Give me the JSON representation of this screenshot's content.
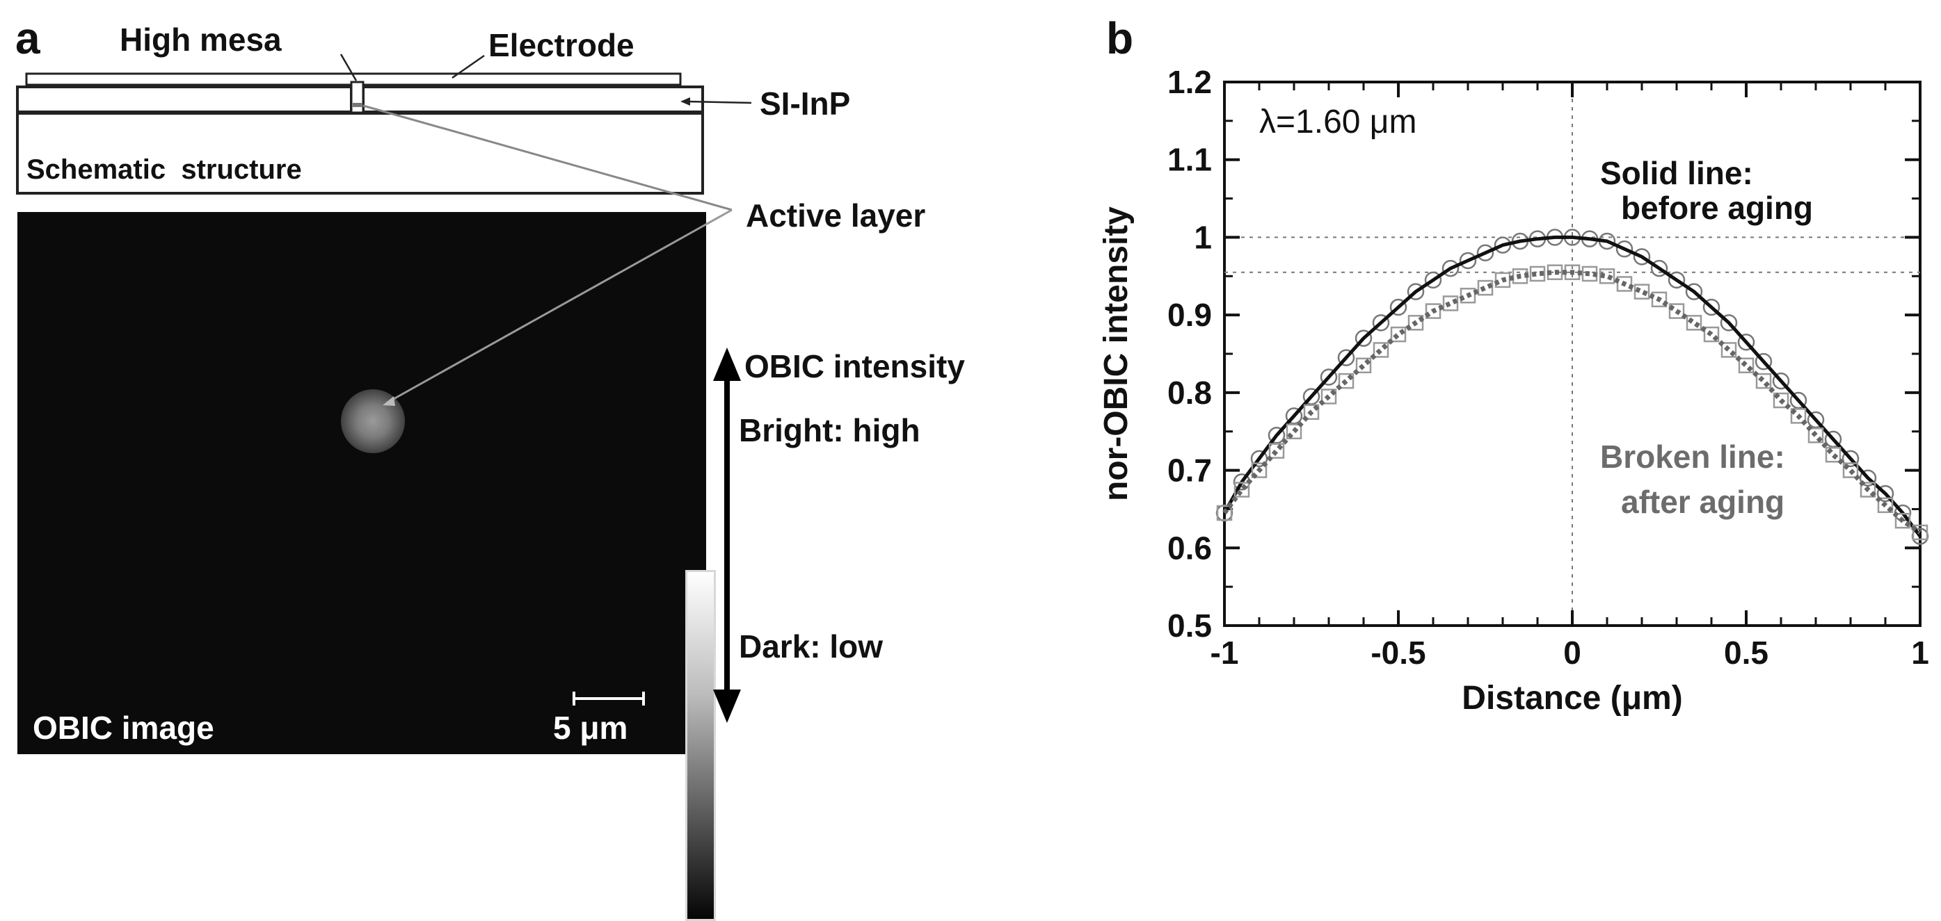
{
  "panel_a": {
    "letter": "a",
    "labels": {
      "high_mesa": "High mesa",
      "electrode": "Electrode",
      "si_inp": "SI-InP",
      "schematic": "Schematic  structure",
      "active_layer": "Active layer",
      "obic_intensity": "OBIC intensity",
      "bright": "Bright: high",
      "dark": "Dark: low",
      "obic_image": "OBIC image",
      "scale": "5 μm"
    }
  },
  "panel_b": {
    "letter": "b",
    "annotation_lambda": "λ=1.60 μm",
    "solid_label_1": "Solid line:",
    "solid_label_2": "before aging",
    "broken_label_1": "Broken line:",
    "broken_label_2": "after aging"
  },
  "chart_data": {
    "type": "scatter",
    "xlabel": "Distance (μm)",
    "ylabel": "nor-OBIC intensity",
    "xlim": [
      -1,
      1
    ],
    "ylim": [
      0.5,
      1.2
    ],
    "xticks": [
      -1,
      -0.5,
      0,
      0.5,
      1
    ],
    "xtick_labels": [
      "-1",
      "-0.5",
      "0",
      "0.5",
      "1"
    ],
    "yticks": [
      0.5,
      0.6,
      0.7,
      0.8,
      0.9,
      1.0,
      1.1,
      1.2
    ],
    "ytick_labels": [
      "0.5",
      "0.6",
      "0.7",
      "0.8",
      "0.9",
      "1",
      "1.1",
      "1.2"
    ],
    "reference_lines": {
      "h": [
        1.0,
        0.955
      ],
      "v": [
        0
      ]
    },
    "series": [
      {
        "name": "Solid line: before aging",
        "marker": "circle",
        "line": "solid",
        "color": "#111111",
        "x": [
          -1,
          -0.95,
          -0.9,
          -0.85,
          -0.8,
          -0.75,
          -0.7,
          -0.65,
          -0.6,
          -0.55,
          -0.5,
          -0.45,
          -0.4,
          -0.35,
          -0.3,
          -0.25,
          -0.2,
          -0.15,
          -0.1,
          -0.05,
          0,
          0.05,
          0.1,
          0.15,
          0.2,
          0.25,
          0.3,
          0.35,
          0.4,
          0.45,
          0.5,
          0.55,
          0.6,
          0.65,
          0.7,
          0.75,
          0.8,
          0.85,
          0.9,
          0.95,
          1
        ],
        "y": [
          0.645,
          0.685,
          0.715,
          0.745,
          0.77,
          0.795,
          0.82,
          0.845,
          0.87,
          0.89,
          0.91,
          0.93,
          0.945,
          0.96,
          0.97,
          0.98,
          0.99,
          0.995,
          0.998,
          1.0,
          1.0,
          0.998,
          0.995,
          0.985,
          0.975,
          0.96,
          0.945,
          0.93,
          0.91,
          0.89,
          0.865,
          0.84,
          0.815,
          0.79,
          0.765,
          0.74,
          0.715,
          0.69,
          0.67,
          0.645,
          0.615
        ]
      },
      {
        "name": "Broken line: after aging",
        "marker": "square",
        "line": "dashed",
        "color": "#666666",
        "x": [
          -1,
          -0.95,
          -0.9,
          -0.85,
          -0.8,
          -0.75,
          -0.7,
          -0.65,
          -0.6,
          -0.55,
          -0.5,
          -0.45,
          -0.4,
          -0.35,
          -0.3,
          -0.25,
          -0.2,
          -0.15,
          -0.1,
          -0.05,
          0,
          0.05,
          0.1,
          0.15,
          0.2,
          0.25,
          0.3,
          0.35,
          0.4,
          0.45,
          0.5,
          0.55,
          0.6,
          0.65,
          0.7,
          0.75,
          0.8,
          0.85,
          0.9,
          0.95,
          1
        ],
        "y": [
          0.645,
          0.675,
          0.7,
          0.725,
          0.75,
          0.775,
          0.795,
          0.815,
          0.835,
          0.855,
          0.875,
          0.89,
          0.905,
          0.915,
          0.925,
          0.935,
          0.945,
          0.95,
          0.953,
          0.955,
          0.955,
          0.953,
          0.95,
          0.94,
          0.93,
          0.92,
          0.905,
          0.89,
          0.875,
          0.855,
          0.835,
          0.815,
          0.79,
          0.77,
          0.745,
          0.72,
          0.7,
          0.675,
          0.655,
          0.635,
          0.62
        ]
      }
    ]
  }
}
